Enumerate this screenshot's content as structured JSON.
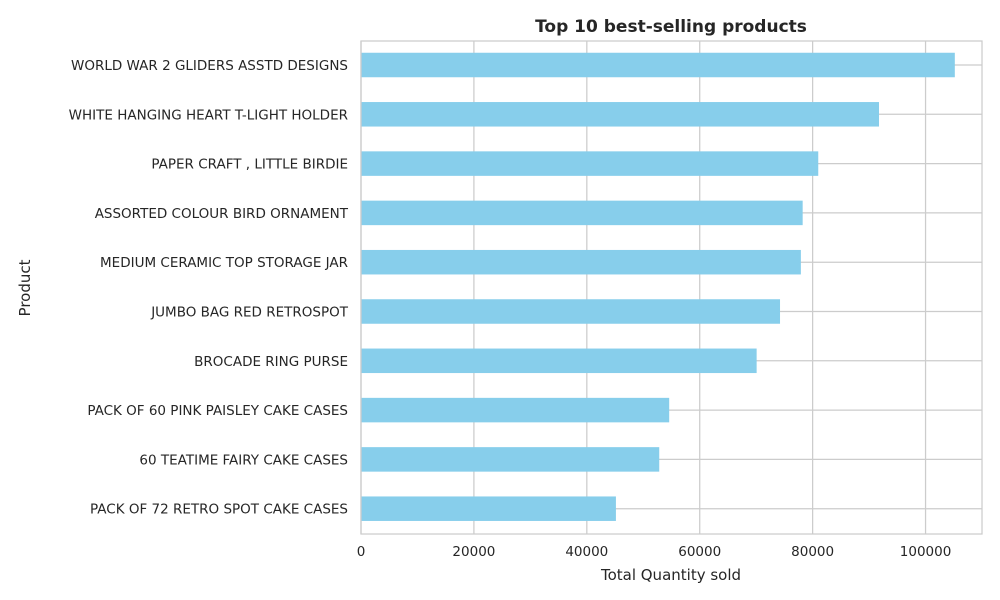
{
  "chart_data": {
    "type": "bar",
    "orientation": "horizontal",
    "title": "Top 10 best-selling products",
    "xlabel": "Total Quantity sold",
    "ylabel": "Product",
    "categories": [
      "WORLD WAR 2 GLIDERS ASSTD DESIGNS",
      "WHITE HANGING HEART T-LIGHT HOLDER",
      "PAPER CRAFT , LITTLE BIRDIE",
      "ASSORTED COLOUR BIRD ORNAMENT",
      "MEDIUM CERAMIC TOP STORAGE JAR",
      "JUMBO BAG RED RETROSPOT",
      "BROCADE RING PURSE",
      "PACK OF 60 PINK PAISLEY CAKE CASES",
      "60 TEATIME FAIRY CAKE CASES",
      "PACK OF 72 RETRO SPOT CAKE CASES"
    ],
    "values": [
      105185,
      91757,
      80995,
      78234,
      77916,
      74224,
      70082,
      54592,
      52828,
      45156
    ],
    "xlim": [
      0,
      110000
    ],
    "xticks": [
      0,
      20000,
      40000,
      60000,
      80000,
      100000
    ],
    "grid": true,
    "bar_color": "#87CEEB"
  }
}
